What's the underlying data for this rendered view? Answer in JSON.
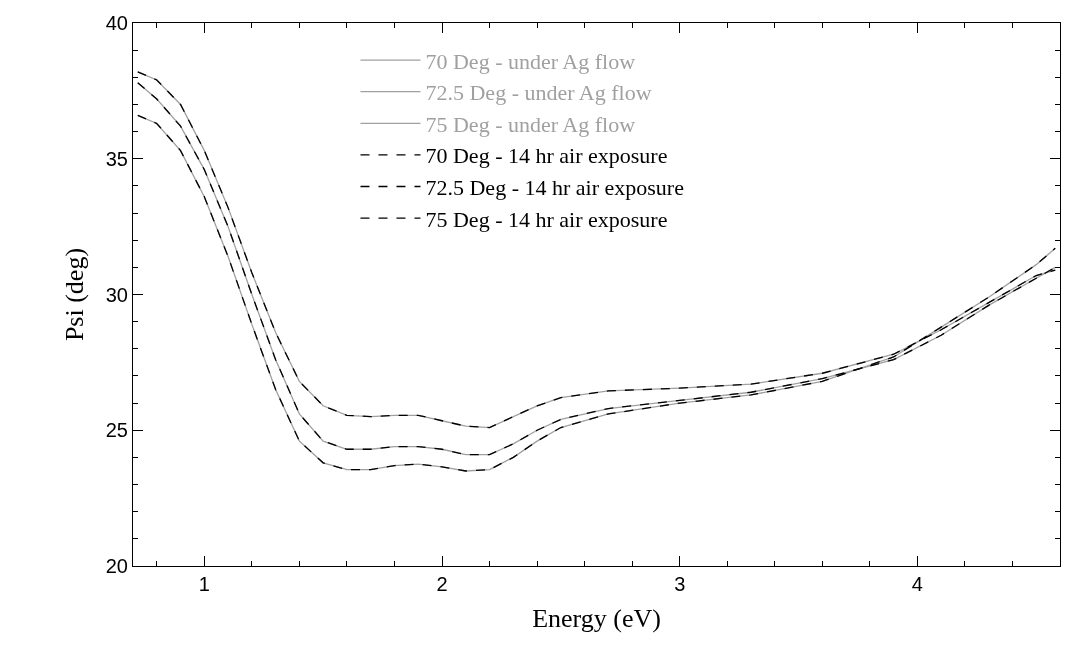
{
  "chart_data": {
    "type": "line",
    "xlabel": "Energy (eV)",
    "ylabel": "Psi (deg)",
    "x": [
      0.72,
      0.8,
      0.9,
      1.0,
      1.1,
      1.2,
      1.3,
      1.4,
      1.5,
      1.6,
      1.7,
      1.8,
      1.9,
      2.0,
      2.1,
      2.2,
      2.3,
      2.4,
      2.5,
      2.7,
      3.0,
      3.3,
      3.6,
      3.9,
      4.1,
      4.3,
      4.5,
      4.58
    ],
    "xlim": [
      0.7,
      4.6
    ],
    "xticks": [
      1,
      2,
      3,
      4
    ],
    "ylim": [
      20,
      40
    ],
    "yticks": [
      20,
      25,
      30,
      35,
      40
    ],
    "grid": false,
    "legend": "top",
    "marker": "none",
    "series": [
      {
        "name": "70 Deg - under Ag flow",
        "color": "#a0a0a0",
        "line_style": "solid",
        "values": [
          38.2,
          37.9,
          37.0,
          35.3,
          33.2,
          30.8,
          28.6,
          26.8,
          25.9,
          25.55,
          25.5,
          25.55,
          25.55,
          25.35,
          25.15,
          25.1,
          25.5,
          25.9,
          26.2,
          26.45,
          26.55,
          26.7,
          27.1,
          27.8,
          28.7,
          29.7,
          30.7,
          30.9
        ]
      },
      {
        "name": "72.5 Deg - under Ag flow",
        "color": "#a0a0a0",
        "line_style": "solid",
        "values": [
          37.8,
          37.2,
          36.2,
          34.6,
          32.5,
          30.0,
          27.6,
          25.6,
          24.6,
          24.3,
          24.3,
          24.4,
          24.4,
          24.3,
          24.1,
          24.1,
          24.5,
          25.0,
          25.4,
          25.8,
          26.1,
          26.4,
          26.9,
          27.6,
          28.5,
          29.6,
          30.6,
          31.0
        ]
      },
      {
        "name": "75 Deg - under Ag flow",
        "color": "#a0a0a0",
        "line_style": "solid",
        "values": [
          36.6,
          36.3,
          35.3,
          33.6,
          31.4,
          28.9,
          26.5,
          24.6,
          23.8,
          23.55,
          23.55,
          23.7,
          23.75,
          23.65,
          23.5,
          23.55,
          24.0,
          24.6,
          25.1,
          25.6,
          26.0,
          26.3,
          26.8,
          27.7,
          28.8,
          29.9,
          31.1,
          31.7
        ]
      },
      {
        "name": "70 Deg - 14 hr air exposure",
        "color": "#000000",
        "line_style": "dashed",
        "values": [
          38.2,
          37.9,
          37.0,
          35.3,
          33.2,
          30.8,
          28.6,
          26.8,
          25.9,
          25.55,
          25.5,
          25.55,
          25.55,
          25.35,
          25.15,
          25.1,
          25.5,
          25.9,
          26.2,
          26.45,
          26.55,
          26.7,
          27.1,
          27.8,
          28.7,
          29.7,
          30.7,
          30.9
        ]
      },
      {
        "name": "72.5 Deg - 14 hr air exposure",
        "color": "#000000",
        "line_style": "dashed",
        "values": [
          37.8,
          37.2,
          36.2,
          34.6,
          32.5,
          30.0,
          27.6,
          25.6,
          24.6,
          24.3,
          24.3,
          24.4,
          24.4,
          24.3,
          24.1,
          24.1,
          24.5,
          25.0,
          25.4,
          25.8,
          26.1,
          26.4,
          26.9,
          27.6,
          28.5,
          29.6,
          30.6,
          31.0
        ]
      },
      {
        "name": "75 Deg - 14 hr air exposure",
        "color": "#000000",
        "line_style": "dashed",
        "values": [
          36.6,
          36.3,
          35.3,
          33.6,
          31.4,
          28.9,
          26.5,
          24.6,
          23.8,
          23.55,
          23.55,
          23.7,
          23.75,
          23.65,
          23.5,
          23.55,
          24.0,
          24.6,
          25.1,
          25.6,
          26.0,
          26.3,
          26.8,
          27.7,
          28.8,
          29.9,
          31.1,
          31.7
        ]
      }
    ]
  }
}
